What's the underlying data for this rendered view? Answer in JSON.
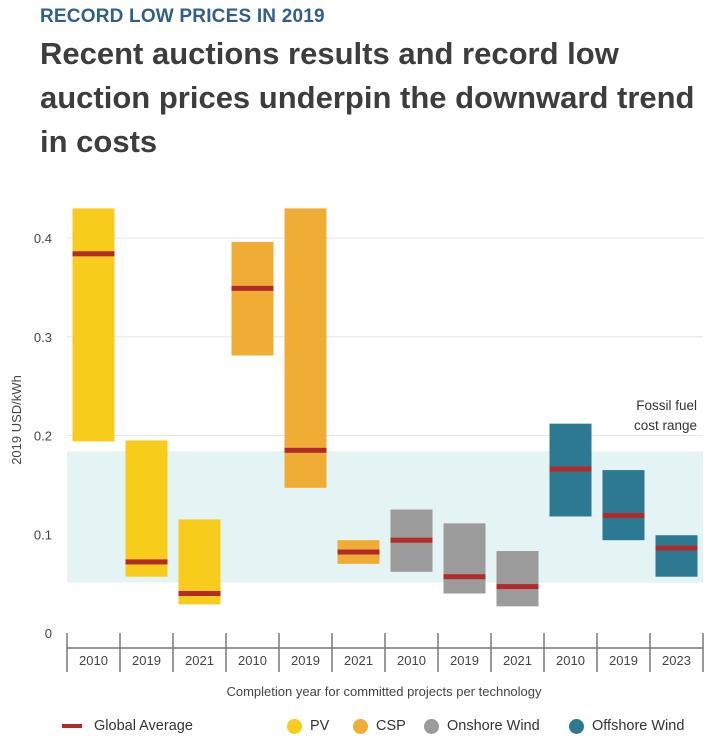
{
  "header": {
    "kicker": "RECORD LOW PRICES IN 2019",
    "title": "Recent auctions results and record low auction prices underpin the downward trend in costs"
  },
  "colors": {
    "pv": "#f8cc1b",
    "csp": "#f0ad36",
    "onshore": "#9b9b9b",
    "offshore": "#2b7a91",
    "average": "#b22a2a",
    "fossil_band": "#e4f3f3"
  },
  "legend": {
    "average": "Global Average",
    "pv": "PV",
    "csp": "CSP",
    "onshore": "Onshore Wind",
    "offshore": "Offshore Wind"
  },
  "chart_data": {
    "type": "range-bar",
    "ylabel": "2019 USD/kWh",
    "xlabel": "Completion year for committed projects per technology",
    "ylim": [
      0,
      0.43
    ],
    "yticks": [
      0,
      0.1,
      0.2,
      0.3,
      0.4
    ],
    "ytick_labels": [
      "0",
      "0.1",
      "0.2",
      "0.3",
      "0.4"
    ],
    "fossil_range": {
      "label": [
        "Fossil fuel",
        "cost range"
      ],
      "low": 0.051,
      "high": 0.184
    },
    "bars": [
      {
        "tech": "pv",
        "year": "2010",
        "low": 0.194,
        "high": 0.43,
        "avg": 0.384
      },
      {
        "tech": "pv",
        "year": "2019",
        "low": 0.057,
        "high": 0.195,
        "avg": 0.072
      },
      {
        "tech": "pv",
        "year": "2021",
        "low": 0.029,
        "high": 0.115,
        "avg": 0.04
      },
      {
        "tech": "csp",
        "year": "2010",
        "low": 0.281,
        "high": 0.396,
        "avg": 0.349
      },
      {
        "tech": "csp",
        "year": "2019",
        "low": 0.147,
        "high": 0.43,
        "avg": 0.185
      },
      {
        "tech": "csp",
        "year": "2021",
        "low": 0.07,
        "high": 0.094,
        "avg": 0.082
      },
      {
        "tech": "onshore",
        "year": "2010",
        "low": 0.062,
        "high": 0.125,
        "avg": 0.094
      },
      {
        "tech": "onshore",
        "year": "2019",
        "low": 0.04,
        "high": 0.111,
        "avg": 0.057
      },
      {
        "tech": "onshore",
        "year": "2021",
        "low": 0.027,
        "high": 0.083,
        "avg": 0.047
      },
      {
        "tech": "offshore",
        "year": "2010",
        "low": 0.118,
        "high": 0.212,
        "avg": 0.166
      },
      {
        "tech": "offshore",
        "year": "2019",
        "low": 0.094,
        "high": 0.165,
        "avg": 0.119
      },
      {
        "tech": "offshore",
        "year": "2023",
        "low": 0.057,
        "high": 0.099,
        "avg": 0.086
      }
    ]
  }
}
